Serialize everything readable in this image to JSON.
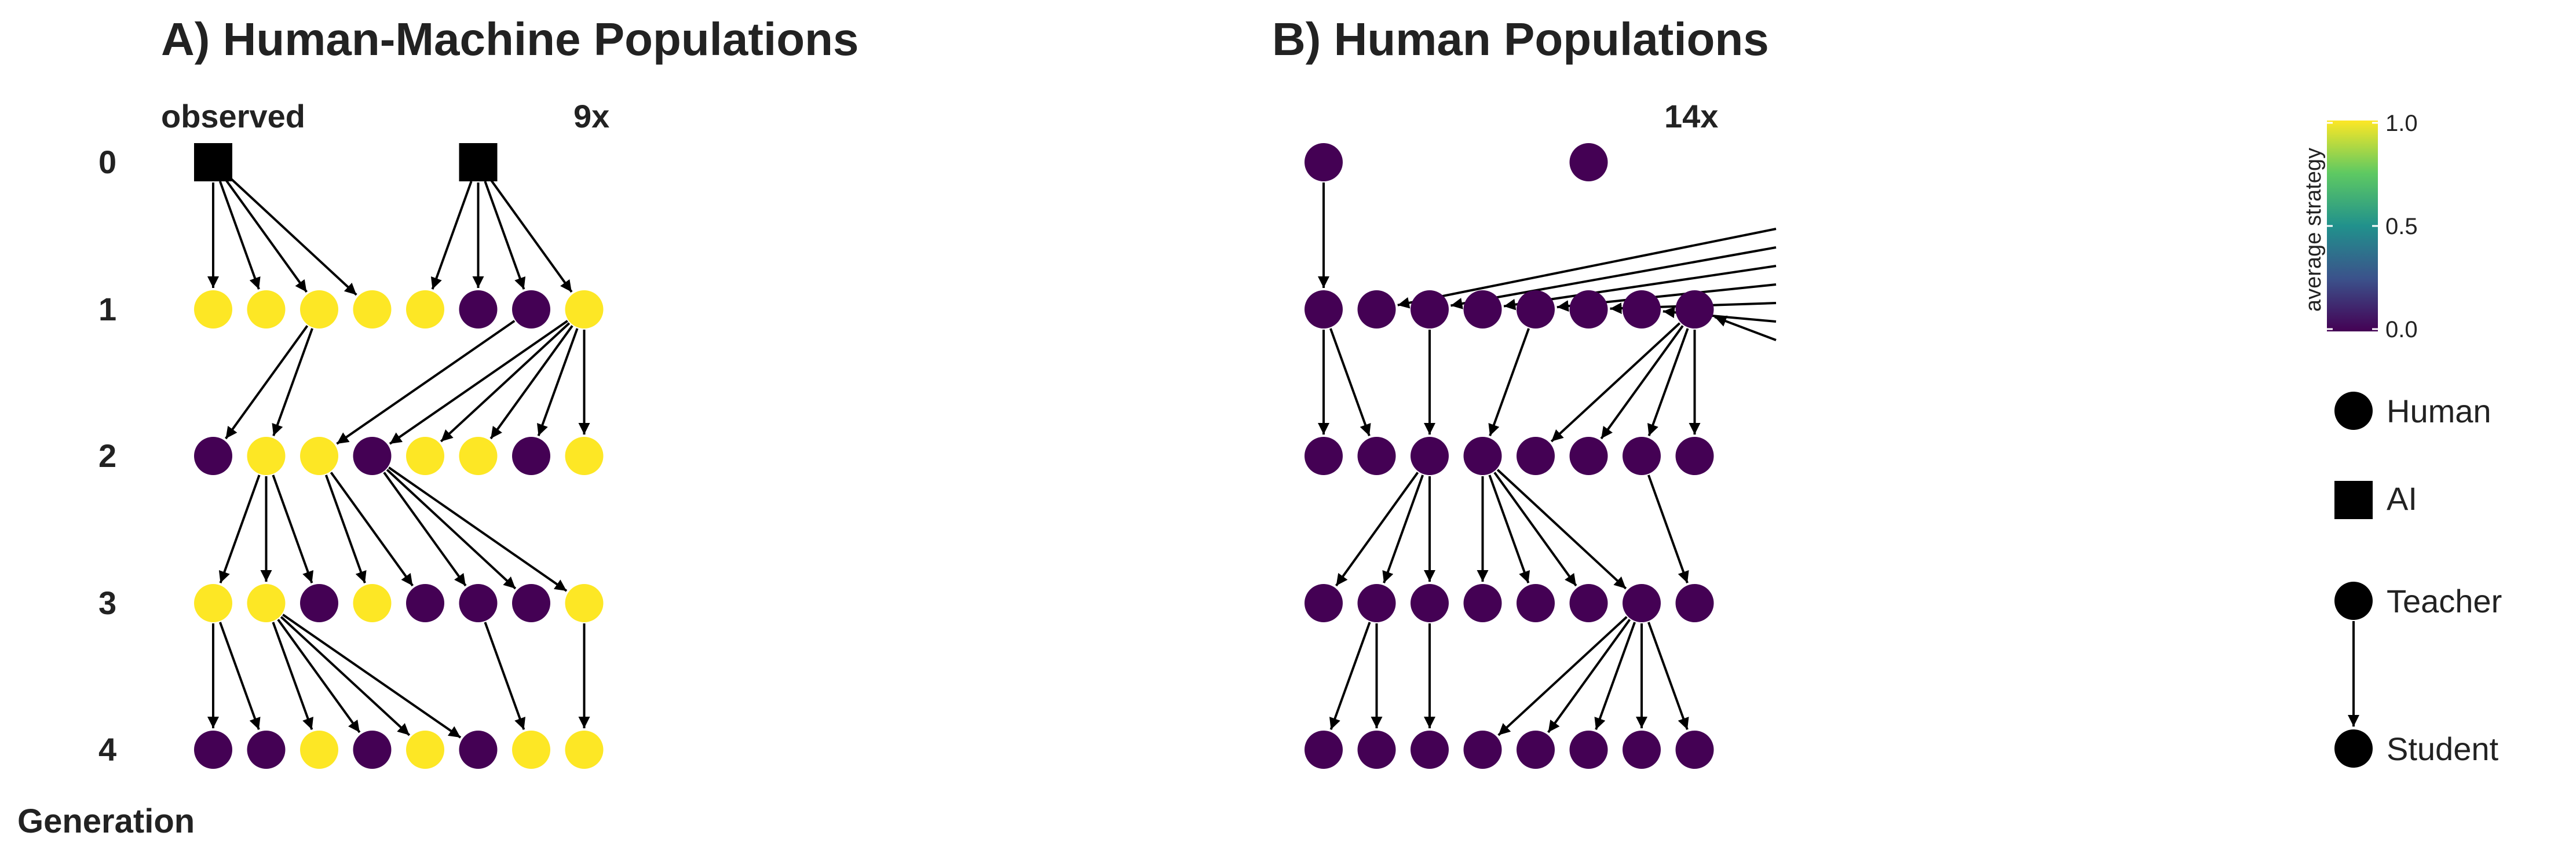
{
  "panel_a": {
    "title": "A) Human-Machine Populations",
    "label_observed": "observed",
    "label_repeat": "9x"
  },
  "panel_b": {
    "title": "B) Human Populations",
    "label_repeat": "14x"
  },
  "generation_axis": {
    "title": "Generation",
    "labels": [
      "0",
      "1",
      "2",
      "3",
      "4"
    ]
  },
  "colorbar": {
    "title": "average strategy",
    "ticks": [
      "1.0",
      "0.5",
      "0.0"
    ],
    "colors": [
      "#440154",
      "#3b528b",
      "#21918c",
      "#5ec962",
      "#fde725"
    ]
  },
  "legend": {
    "human": "Human",
    "ai": "AI",
    "teacher": "Teacher",
    "student": "Student"
  },
  "colors": {
    "yellow": "#fde725",
    "purple": "#440154",
    "black": "#000000"
  },
  "networks": {
    "panel_a": {
      "nodes": {
        "gen0": [
          {
            "slot": 0,
            "type": "AI",
            "strategy": null
          },
          {
            "slot": 5,
            "type": "AI",
            "strategy": null
          }
        ],
        "gen1": [
          1,
          1,
          1,
          1,
          1,
          0,
          0,
          1
        ],
        "gen2": [
          0,
          1,
          1,
          0,
          1,
          1,
          0,
          1
        ],
        "gen3": [
          1,
          1,
          0,
          1,
          0,
          0,
          0,
          1
        ],
        "gen4": [
          0,
          0,
          1,
          0,
          1,
          0,
          1,
          1
        ]
      },
      "edges": [
        [
          0,
          0,
          1,
          0
        ],
        [
          0,
          0,
          1,
          1
        ],
        [
          0,
          0,
          1,
          2
        ],
        [
          0,
          0,
          1,
          3
        ],
        [
          0,
          5,
          1,
          4
        ],
        [
          0,
          5,
          1,
          5
        ],
        [
          0,
          5,
          1,
          6
        ],
        [
          0,
          5,
          1,
          7
        ],
        [
          1,
          2,
          2,
          0
        ],
        [
          1,
          2,
          2,
          1
        ],
        [
          1,
          6,
          2,
          2
        ],
        [
          1,
          7,
          2,
          3
        ],
        [
          1,
          7,
          2,
          4
        ],
        [
          1,
          7,
          2,
          5
        ],
        [
          1,
          7,
          2,
          6
        ],
        [
          1,
          7,
          2,
          7
        ],
        [
          2,
          1,
          3,
          0
        ],
        [
          2,
          1,
          3,
          1
        ],
        [
          2,
          1,
          3,
          2
        ],
        [
          2,
          2,
          3,
          3
        ],
        [
          2,
          2,
          3,
          4
        ],
        [
          2,
          3,
          3,
          5
        ],
        [
          2,
          3,
          3,
          6
        ],
        [
          2,
          3,
          3,
          7
        ],
        [
          3,
          0,
          4,
          0
        ],
        [
          3,
          0,
          4,
          1
        ],
        [
          3,
          1,
          4,
          2
        ],
        [
          3,
          1,
          4,
          3
        ],
        [
          3,
          1,
          4,
          4
        ],
        [
          3,
          1,
          4,
          5
        ],
        [
          3,
          5,
          4,
          6
        ],
        [
          3,
          7,
          4,
          7
        ]
      ]
    },
    "panel_b": {
      "nodes": {
        "gen0": [
          {
            "slot": 0,
            "type": "Human",
            "strategy": 0
          },
          {
            "slot": 5,
            "type": "Human",
            "strategy": 0
          }
        ],
        "gen1": [
          0,
          0,
          0,
          0,
          0,
          0,
          0,
          0
        ],
        "gen2": [
          0,
          0,
          0,
          0,
          0,
          0,
          0,
          0
        ],
        "gen3": [
          0,
          0,
          0,
          0,
          0,
          0,
          0,
          0
        ],
        "gen4": [
          0,
          0,
          0,
          0,
          0,
          0,
          0,
          0
        ]
      },
      "edges": [
        [
          0,
          0,
          1,
          0
        ],
        [
          1,
          0,
          2,
          0
        ],
        [
          1,
          0,
          2,
          1
        ],
        [
          1,
          2,
          2,
          2
        ],
        [
          1,
          4,
          2,
          3
        ],
        [
          1,
          7,
          2,
          4
        ],
        [
          1,
          7,
          2,
          5
        ],
        [
          1,
          7,
          2,
          6
        ],
        [
          1,
          7,
          2,
          7
        ],
        [
          2,
          2,
          3,
          0
        ],
        [
          2,
          2,
          3,
          1
        ],
        [
          2,
          2,
          3,
          2
        ],
        [
          2,
          3,
          3,
          3
        ],
        [
          2,
          3,
          3,
          4
        ],
        [
          2,
          3,
          3,
          5
        ],
        [
          2,
          3,
          3,
          6
        ],
        [
          2,
          6,
          3,
          7
        ],
        [
          3,
          1,
          4,
          0
        ],
        [
          3,
          1,
          4,
          1
        ],
        [
          3,
          2,
          4,
          2
        ],
        [
          3,
          6,
          4,
          3
        ],
        [
          3,
          6,
          4,
          4
        ],
        [
          3,
          6,
          4,
          5
        ],
        [
          3,
          6,
          4,
          6
        ],
        [
          3,
          6,
          4,
          7
        ]
      ],
      "incoming_from_offscreen_gen1": [
        1,
        2,
        3,
        4,
        5,
        6,
        7
      ]
    }
  }
}
